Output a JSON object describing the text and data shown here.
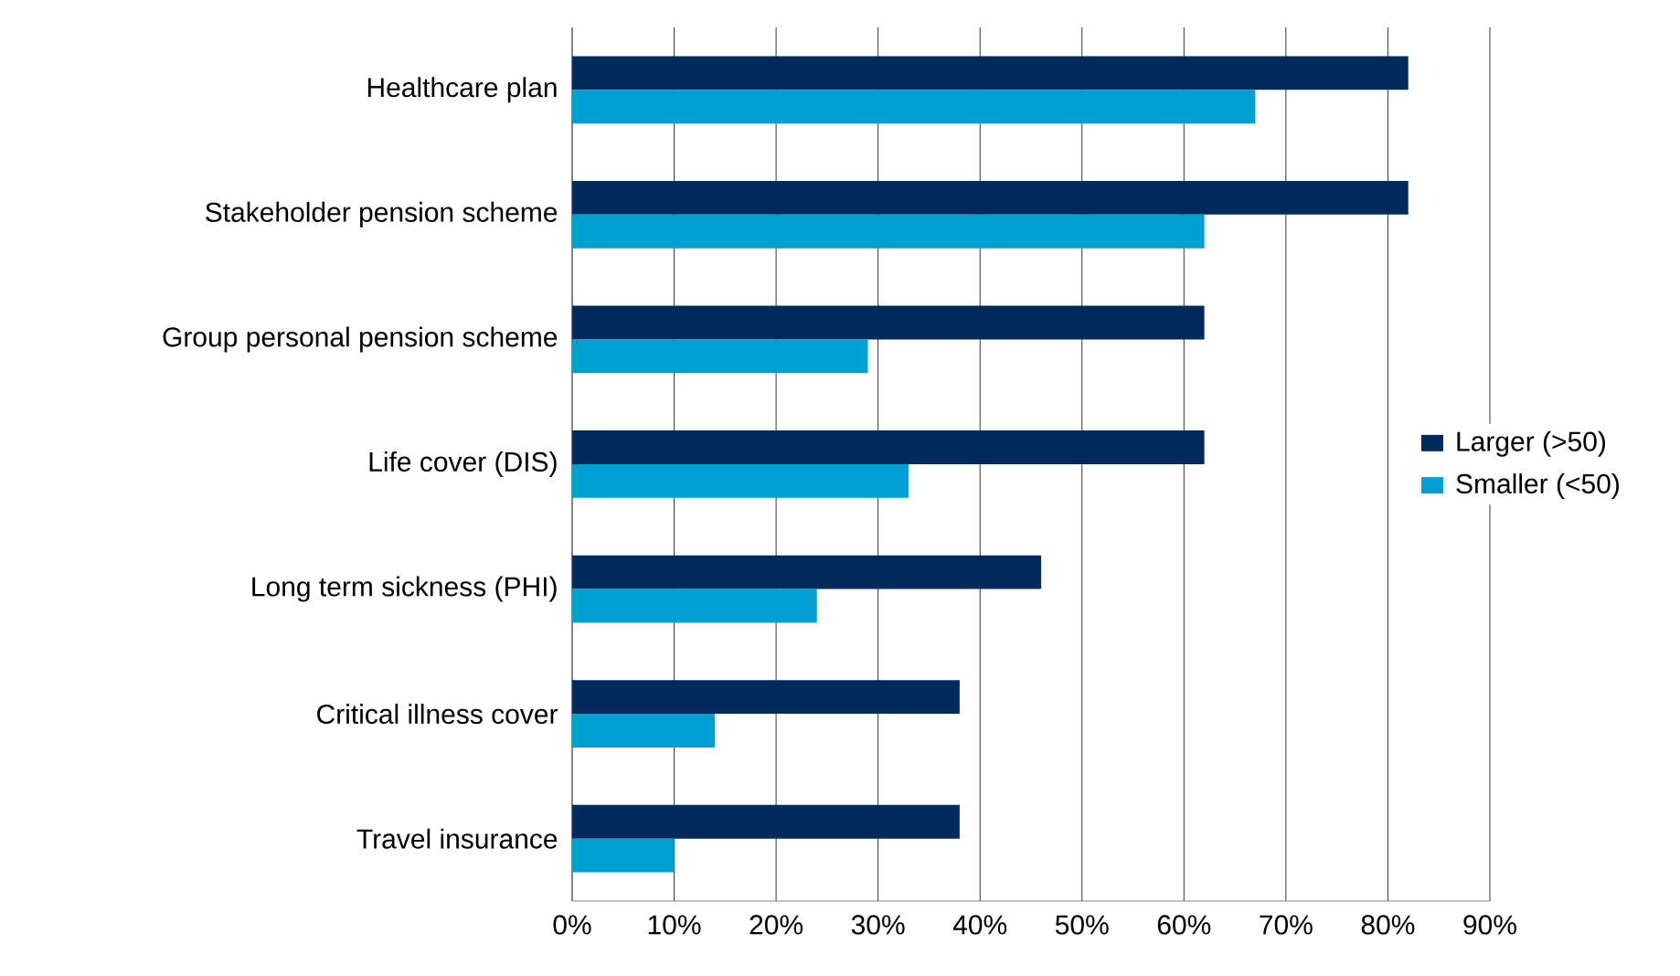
{
  "chart_data": {
    "type": "bar",
    "orientation": "horizontal",
    "categories": [
      "Healthcare plan",
      "Stakeholder pension scheme",
      "Group personal pension scheme",
      "Life cover (DIS)",
      "Long term sickness (PHI)",
      "Critical illness cover",
      "Travel insurance"
    ],
    "series": [
      {
        "name": "Larger (>50)",
        "color": "#002b5c",
        "values": [
          82,
          82,
          62,
          62,
          46,
          38,
          38
        ]
      },
      {
        "name": "Smaller (<50)",
        "color": "#009fd1",
        "values": [
          67,
          62,
          29,
          33,
          24,
          14,
          10
        ]
      }
    ],
    "xlim": [
      0,
      90
    ],
    "xticks": [
      {
        "value": 0,
        "label": "0%"
      },
      {
        "value": 10,
        "label": "10%"
      },
      {
        "value": 20,
        "label": "20%"
      },
      {
        "value": 30,
        "label": "30%"
      },
      {
        "value": 40,
        "label": "40%"
      },
      {
        "value": 50,
        "label": "50%"
      },
      {
        "value": 60,
        "label": "60%"
      },
      {
        "value": 70,
        "label": "70%"
      },
      {
        "value": 80,
        "label": "80%"
      },
      {
        "value": 90,
        "label": "90%"
      }
    ],
    "grid": "x",
    "legend": "right"
  }
}
